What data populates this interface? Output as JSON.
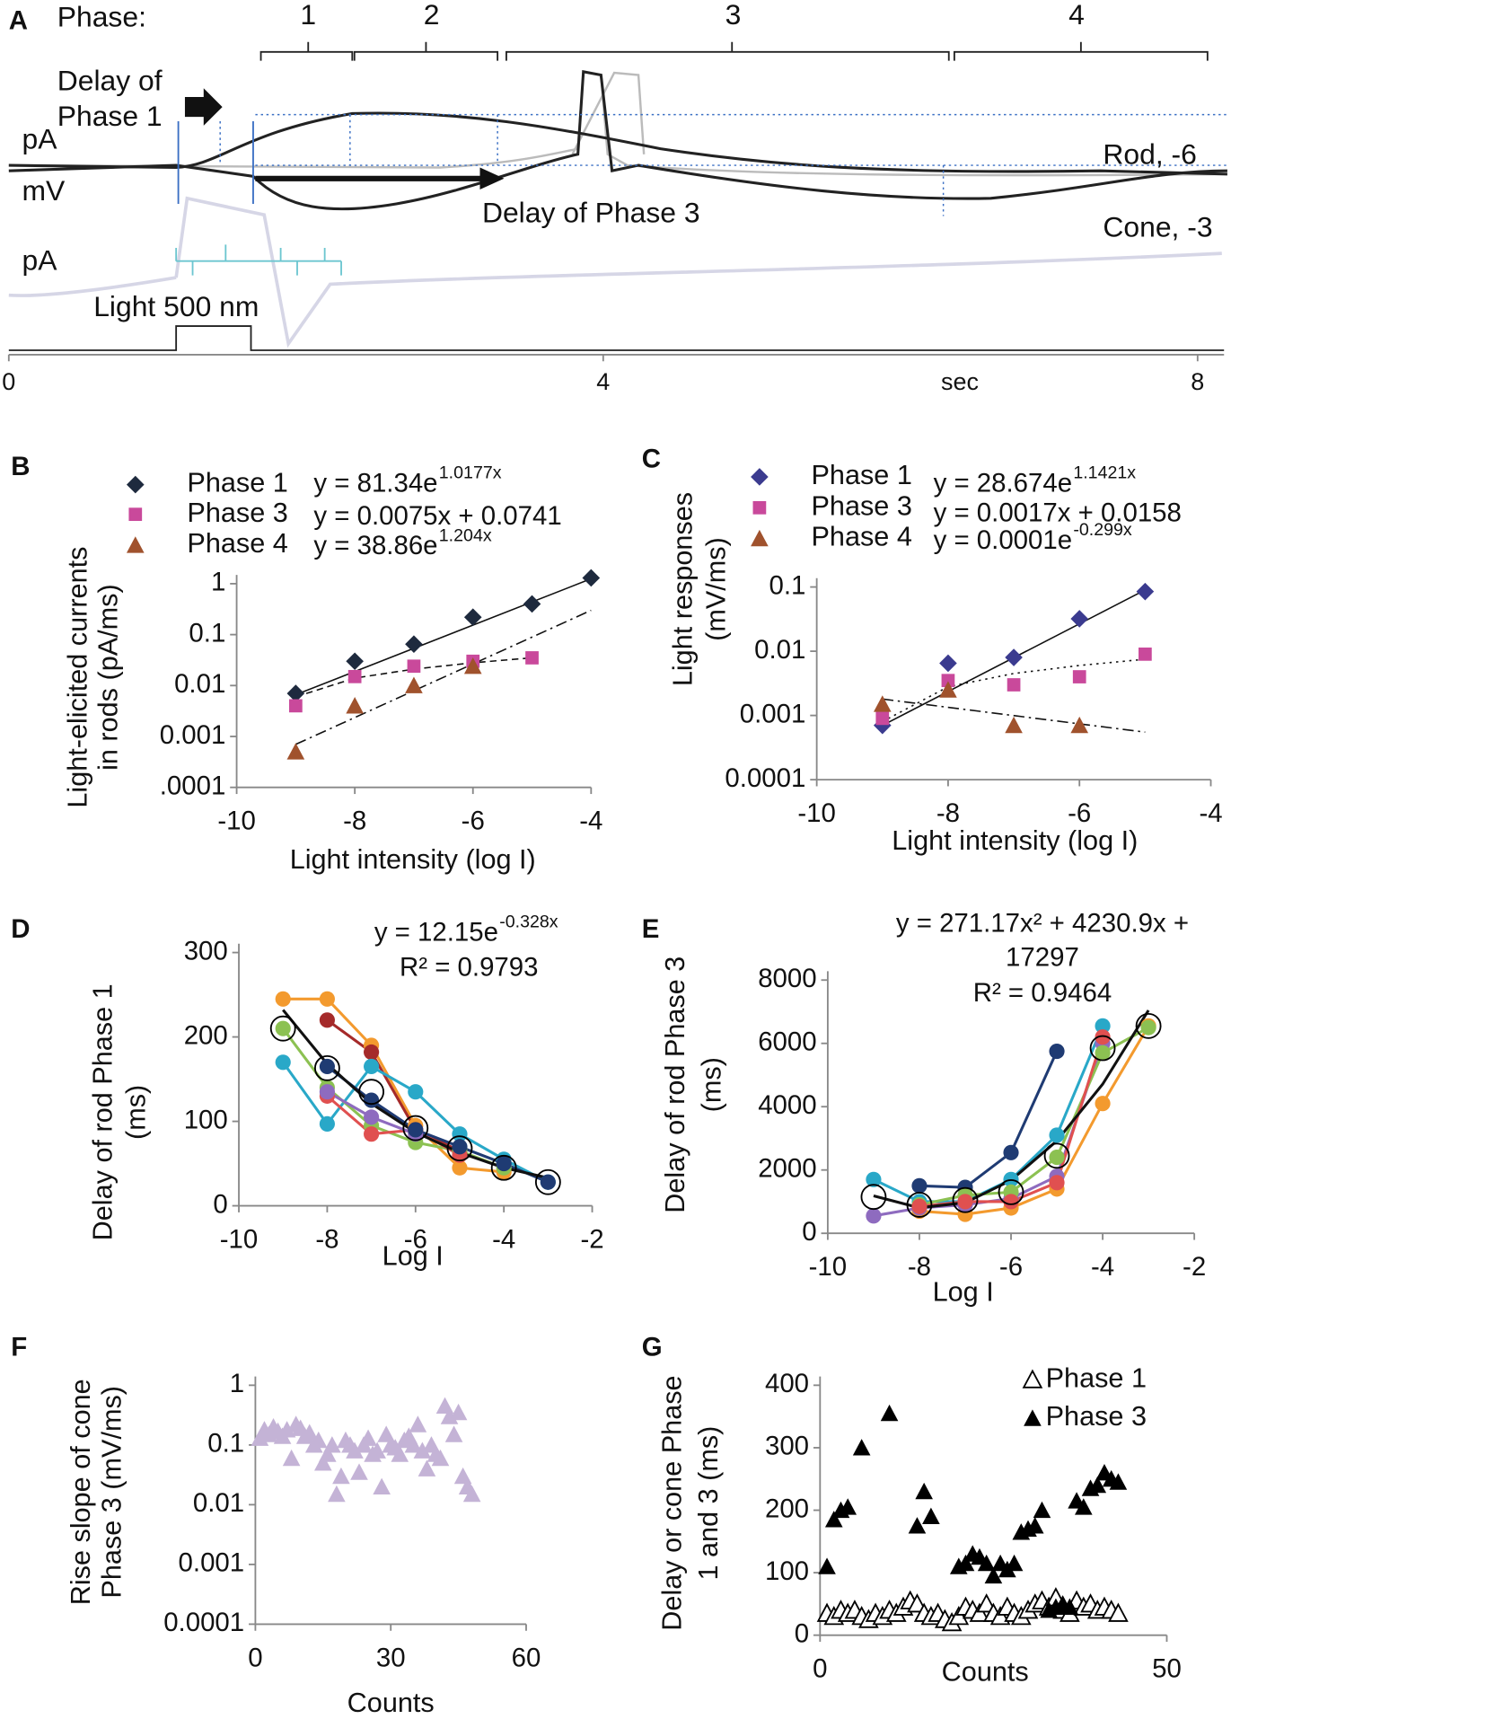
{
  "chart_data": [
    {
      "panel": "A",
      "type": "traces",
      "xlim": [
        0,
        8
      ],
      "xticks": [
        0,
        4,
        8
      ],
      "xlabel": "sec",
      "phase_title": "Phase:",
      "phases": [
        "1",
        "2",
        "3",
        "4"
      ],
      "annotations": [
        "Delay of",
        "Phase 1",
        "pA",
        "mV",
        "Rod,   -6",
        "Cone, -3",
        "pA",
        "Light 500 nm",
        "Delay of Phase 3"
      ]
    },
    {
      "panel": "B",
      "type": "scatter",
      "ylog": true,
      "ylabel": [
        "Light-elicited currents",
        "in rods (pA/ms)"
      ],
      "xlabel": "Light intensity (log I)",
      "xlim": [
        -10,
        -4
      ],
      "ylim": [
        0.0001,
        1
      ],
      "xticks": [
        -10,
        -8,
        -6,
        -4
      ],
      "yticks": [
        1,
        0.1,
        0.01,
        0.001,
        {
          "value": 0.0001,
          "label": ".0001"
        }
      ],
      "series": [
        {
          "name": "Phase 1",
          "equation": "y = 81.34e",
          "equation_exp": "1.0177x",
          "color": "#1e2a3e",
          "marker": "diamond",
          "x": [
            -9,
            -8,
            -7,
            -6,
            -5,
            -4
          ],
          "values": [
            0.007,
            0.03,
            0.065,
            0.22,
            0.4,
            1.3
          ]
        },
        {
          "name": "Phase 3",
          "equation": "y = 0.0075x + 0.0741",
          "color": "#c9499b",
          "marker": "square",
          "x": [
            -9,
            -8,
            -7,
            -6,
            -5
          ],
          "values": [
            0.004,
            0.015,
            0.024,
            0.03,
            0.035
          ]
        },
        {
          "name": "Phase 4",
          "equation": "y = 38.86e",
          "equation_exp": "1.204x",
          "color": "#a0522d",
          "marker": "triangle",
          "x": [
            -9,
            -8,
            -7,
            -6
          ],
          "values": [
            0.0005,
            0.004,
            0.01,
            0.024
          ]
        }
      ],
      "fits": [
        {
          "dash": "solid",
          "x": [
            -9,
            -4
          ],
          "values": [
            0.0066,
            1.25
          ]
        },
        {
          "dash": "dashed",
          "x": [
            -9,
            -8,
            -7,
            -6,
            -5
          ],
          "values": [
            0.006,
            0.014,
            0.021,
            0.028,
            0.035
          ]
        },
        {
          "dash": "dashdot",
          "x": [
            -9,
            -4
          ],
          "values": [
            0.0007,
            0.3
          ]
        }
      ]
    },
    {
      "panel": "C",
      "type": "scatter",
      "ylog": true,
      "ylabel": [
        "Light responses",
        "(mV/ms)"
      ],
      "xlabel": "Light intensity (log I)",
      "xlim": [
        -10,
        -4
      ],
      "ylim": [
        0.0001,
        0.1
      ],
      "xticks": [
        -10,
        -8,
        -6,
        -4
      ],
      "yticks": [
        0.1,
        0.01,
        0.001,
        0.0001
      ],
      "series": [
        {
          "name": "Phase 1",
          "equation": "y = 28.674e",
          "equation_exp": "1.1421x",
          "color": "#3b3b8f",
          "marker": "diamond",
          "x": [
            -9,
            -8,
            -7,
            -6,
            -5
          ],
          "values": [
            0.0007,
            0.0065,
            0.008,
            0.032,
            0.085
          ]
        },
        {
          "name": "Phase 3",
          "equation": "y = 0.0017x + 0.0158",
          "color": "#c9499b",
          "marker": "square",
          "x": [
            -9,
            -8,
            -7,
            -6,
            -5
          ],
          "values": [
            0.0009,
            0.0035,
            0.003,
            0.004,
            0.009
          ]
        },
        {
          "name": "Phase 4",
          "equation": "y = 0.0001e",
          "equation_exp": "-0.299x",
          "color": "#a0522d",
          "marker": "triangle",
          "x": [
            -9,
            -8,
            -7,
            -6
          ],
          "values": [
            0.0015,
            0.0025,
            0.0007,
            0.0007
          ]
        }
      ],
      "fits": [
        {
          "dash": "solid",
          "x": [
            -9,
            -5
          ],
          "values": [
            0.0007,
            0.09
          ]
        },
        {
          "dash": "dotted",
          "x": [
            -9,
            -8,
            -7,
            -6,
            -5
          ],
          "values": [
            0.0008,
            0.0028,
            0.0045,
            0.006,
            0.0075
          ]
        },
        {
          "dash": "dashdot",
          "x": [
            -9,
            -5
          ],
          "values": [
            0.0018,
            0.00055
          ]
        }
      ]
    },
    {
      "panel": "D",
      "type": "scatter",
      "ylabel": [
        "Delay of rod Phase 1",
        "(ms)"
      ],
      "xlabel": "Log I",
      "xlim": [
        -10,
        -2
      ],
      "ylim": [
        0,
        300
      ],
      "xticks": [
        -10,
        -8,
        -6,
        -4,
        -2
      ],
      "yticks": [
        0,
        100,
        200,
        300
      ],
      "equation": [
        "y = 12.15e"
      ],
      "equation_exp": "-0.328x",
      "r2": "R² = 0.9793",
      "series": [
        {
          "color": "#f39a2e",
          "marker": "dot",
          "connect": true,
          "x": [
            -9,
            -8,
            -7,
            -6,
            -5,
            -4
          ],
          "values": [
            245,
            245,
            190,
            95,
            45,
            40
          ]
        },
        {
          "color": "#a52a2a",
          "marker": "dot",
          "connect": true,
          "x": [
            -8,
            -7,
            -6,
            -5
          ],
          "values": [
            220,
            182,
            90,
            65
          ]
        },
        {
          "color": "#29a8c8",
          "marker": "dot",
          "connect": true,
          "x": [
            -9,
            -8,
            -7,
            -6,
            -5,
            -4,
            -3
          ],
          "values": [
            170,
            97,
            165,
            135,
            85,
            55,
            28
          ]
        },
        {
          "color": "#8cc152",
          "marker": "dot",
          "connect": true,
          "x": [
            -9,
            -8,
            -7,
            -6,
            -5,
            -4
          ],
          "values": [
            210,
            140,
            95,
            75,
            65,
            45
          ]
        },
        {
          "color": "#e05050",
          "marker": "dot",
          "connect": true,
          "x": [
            -8,
            -7,
            -6,
            -5
          ],
          "values": [
            130,
            85,
            90,
            60
          ]
        },
        {
          "color": "#8e6bbf",
          "marker": "dot",
          "connect": true,
          "x": [
            -8,
            -7,
            -6
          ],
          "values": [
            135,
            105,
            85
          ]
        },
        {
          "color": "#1f3b73",
          "marker": "dot",
          "connect": true,
          "x": [
            -8,
            -7,
            -6,
            -5,
            -4,
            -3
          ],
          "values": [
            165,
            125,
            90,
            70,
            50,
            28
          ]
        },
        {
          "color": "#000000",
          "marker": "open-circle",
          "x": [
            -9,
            -8,
            -7,
            -6,
            -5,
            -4,
            -3
          ],
          "values": [
            210,
            163,
            135,
            92,
            68,
            45,
            28
          ]
        }
      ],
      "fits": [
        {
          "dash": "solid",
          "x": [
            -9,
            -8,
            -7,
            -6,
            -5,
            -4,
            -3
          ],
          "values": [
            232,
            168,
            121,
            87,
            63,
            45,
            33
          ]
        }
      ]
    },
    {
      "panel": "E",
      "type": "scatter",
      "text_color": "#7f7f7f",
      "ylabel": [
        "Delay of rod Phase 3",
        "(ms)"
      ],
      "xlabel": "Log I",
      "xlim": [
        -10,
        -2
      ],
      "ylim": [
        0,
        8000
      ],
      "xticks": [
        -10,
        -8,
        -6,
        -4,
        -2
      ],
      "yticks": [
        0,
        2000,
        4000,
        6000,
        8000
      ],
      "equation": [
        "y = 271.17x² + 4230.9x +",
        "17297"
      ],
      "r2": "R² = 0.9464",
      "series": [
        {
          "color": "#1f3b73",
          "marker": "dot",
          "connect": true,
          "x": [
            -8,
            -7,
            -6,
            -5
          ],
          "values": [
            1500,
            1450,
            2550,
            5750
          ]
        },
        {
          "color": "#29a8c8",
          "marker": "dot",
          "connect": true,
          "x": [
            -9,
            -8,
            -7,
            -6,
            -5,
            -4
          ],
          "values": [
            1700,
            1000,
            1000,
            1700,
            3100,
            6550
          ]
        },
        {
          "color": "#f39a2e",
          "marker": "dot",
          "connect": true,
          "x": [
            -8,
            -7,
            -6,
            -5,
            -4,
            -3
          ],
          "values": [
            700,
            600,
            800,
            1400,
            4100,
            6550
          ]
        },
        {
          "color": "#8e6bbf",
          "marker": "dot",
          "connect": true,
          "x": [
            -9,
            -8,
            -7,
            -6,
            -5,
            -4
          ],
          "values": [
            550,
            800,
            900,
            1100,
            1800,
            6000
          ]
        },
        {
          "color": "#8cc152",
          "marker": "dot",
          "connect": true,
          "x": [
            -8,
            -7,
            -6,
            -5,
            -4,
            -3
          ],
          "values": [
            900,
            1200,
            1300,
            2400,
            5700,
            6500
          ]
        },
        {
          "color": "#e05050",
          "marker": "dot",
          "connect": true,
          "x": [
            -8,
            -7,
            -6,
            -5,
            -4
          ],
          "values": [
            850,
            1000,
            1000,
            1600,
            6200
          ]
        },
        {
          "color": "#000000",
          "marker": "open-circle",
          "x": [
            -9,
            -8,
            -7,
            -6,
            -5,
            -4,
            -3
          ],
          "values": [
            1150,
            900,
            1050,
            1300,
            2450,
            5850,
            6550
          ]
        }
      ],
      "fits": [
        {
          "dash": "solid",
          "x": [
            -9,
            -8,
            -7,
            -6,
            -5,
            -4,
            -3
          ],
          "values": [
            1184,
            805,
            968,
            1674,
            2921,
            4712,
            7045
          ]
        }
      ]
    },
    {
      "panel": "F",
      "type": "scatter",
      "ylog": true,
      "ylabel": [
        "Rise slope of cone",
        "Phase 3 (mV/ms)"
      ],
      "xlabel": "Counts",
      "xlim": [
        0,
        60
      ],
      "ylim": [
        0.0001,
        1
      ],
      "xticks": [
        0,
        30,
        60
      ],
      "yticks": [
        1,
        0.1,
        0.01,
        0.001,
        0.0001
      ],
      "series": [
        {
          "color": "#c4b3d6",
          "marker": "triangle",
          "x": [
            1,
            2,
            3,
            4,
            5,
            6,
            7,
            8,
            9,
            10,
            11,
            12,
            13,
            14,
            15,
            16,
            17,
            18,
            19,
            20,
            21,
            22,
            23,
            24,
            25,
            26,
            27,
            28,
            29,
            30,
            31,
            32,
            33,
            34,
            35,
            36,
            37,
            38,
            39,
            40,
            41,
            42,
            43,
            44,
            45,
            46,
            47,
            48
          ],
          "values": [
            0.13,
            0.18,
            0.15,
            0.2,
            0.17,
            0.14,
            0.18,
            0.06,
            0.22,
            0.19,
            0.14,
            0.16,
            0.1,
            0.12,
            0.05,
            0.07,
            0.1,
            0.015,
            0.03,
            0.12,
            0.1,
            0.08,
            0.035,
            0.1,
            0.13,
            0.07,
            0.08,
            0.02,
            0.15,
            0.1,
            0.09,
            0.07,
            0.12,
            0.14,
            0.1,
            0.22,
            0.08,
            0.04,
            0.1,
            0.07,
            0.06,
            0.45,
            0.3,
            0.15,
            0.35,
            0.03,
            0.02,
            0.015
          ]
        }
      ]
    },
    {
      "panel": "G",
      "type": "scatter",
      "ylabel": [
        "Delay or cone Phase",
        "1 and 3 (ms)"
      ],
      "xlabel": "Counts",
      "xlim": [
        0,
        50
      ],
      "ylim": [
        0,
        400
      ],
      "xticks": [
        0,
        50
      ],
      "yticks": [
        0,
        100,
        200,
        300,
        400
      ],
      "series": [
        {
          "name": "Phase 1",
          "color": "#000000",
          "marker": "open-triangle",
          "x": [
            1,
            2,
            3,
            4,
            5,
            6,
            7,
            8,
            9,
            10,
            11,
            12,
            13,
            14,
            15,
            16,
            17,
            18,
            19,
            20,
            21,
            22,
            23,
            24,
            25,
            26,
            27,
            28,
            29,
            30,
            31,
            32,
            33,
            34,
            35,
            36,
            37,
            38,
            39,
            40,
            41,
            42,
            43
          ],
          "values": [
            35,
            30,
            40,
            35,
            40,
            30,
            25,
            35,
            30,
            40,
            35,
            45,
            55,
            50,
            35,
            30,
            35,
            25,
            20,
            30,
            45,
            40,
            35,
            50,
            35,
            30,
            45,
            35,
            30,
            40,
            50,
            55,
            45,
            60,
            40,
            35,
            55,
            45,
            50,
            40,
            45,
            40,
            35
          ]
        },
        {
          "name": "Phase 3",
          "color": "#000000",
          "marker": "triangle",
          "x": [
            1,
            2,
            3,
            4,
            6,
            10,
            14,
            15,
            16,
            20,
            21,
            22,
            23,
            24,
            25,
            26,
            27,
            28,
            29,
            30,
            31,
            32,
            33,
            34,
            35,
            36,
            37,
            38,
            39,
            40,
            41,
            42,
            43
          ],
          "values": [
            110,
            185,
            200,
            205,
            300,
            355,
            175,
            230,
            190,
            110,
            115,
            130,
            125,
            115,
            95,
            115,
            105,
            115,
            165,
            170,
            175,
            200,
            40,
            45,
            50,
            45,
            215,
            205,
            235,
            240,
            260,
            250,
            245
          ]
        }
      ]
    }
  ]
}
